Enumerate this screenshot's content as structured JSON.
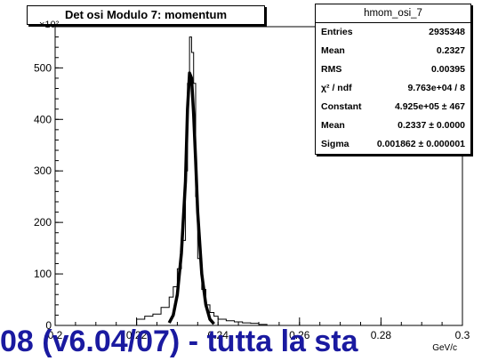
{
  "chart_data": {
    "type": "histogram",
    "title": "Det osi Modulo 7: momentum",
    "xlabel": "GeV/c",
    "ylabel": "",
    "y_exponent_label": "×10²",
    "xlim": [
      0.2,
      0.3
    ],
    "ylim": [
      0,
      580
    ],
    "grid": false,
    "x_ticks": [
      "0.2",
      "0.22",
      "0.24",
      "0.26",
      "0.28",
      "0.3"
    ],
    "y_ticks": [
      "0",
      "100",
      "200",
      "300",
      "400",
      "500"
    ],
    "series": [
      {
        "x": [
          0.22,
          0.222,
          0.224,
          0.226,
          0.228,
          0.229,
          0.23,
          0.231,
          0.232,
          0.2325,
          0.233,
          0.2335,
          0.234,
          0.2345,
          0.235,
          0.236,
          0.237,
          0.238,
          0.239,
          0.24,
          0.242,
          0.244,
          0.246,
          0.248,
          0.25
        ],
        "values": [
          12,
          18,
          22,
          35,
          55,
          75,
          110,
          165,
          300,
          470,
          560,
          530,
          470,
          250,
          130,
          70,
          40,
          25,
          18,
          12,
          9,
          7,
          5,
          4,
          2
        ]
      },
      {
        "x": [
          0.228,
          0.229,
          0.23,
          0.231,
          0.232,
          0.2325,
          0.233,
          0.2335,
          0.234,
          0.2345,
          0.235,
          0.236,
          0.237,
          0.238,
          0.239
        ],
        "values": [
          5,
          20,
          60,
          140,
          280,
          420,
          490,
          480,
          410,
          320,
          220,
          100,
          40,
          12,
          3
        ]
      }
    ]
  },
  "stats": {
    "title": "hmom_osi_7",
    "rows": [
      {
        "label": "Entries",
        "value": "2935348"
      },
      {
        "label": "Mean",
        "value": "0.2327"
      },
      {
        "label": "RMS",
        "value": "0.00395"
      },
      {
        "label": "χ² / ndf",
        "value": "9.763e+04 / 8"
      },
      {
        "label": "Constant",
        "value": "4.925e+05 ± 467"
      },
      {
        "label": "Mean",
        "value": "0.2337 ± 0.0000"
      },
      {
        "label": "Sigma",
        "value": "0.001862 ± 0.000001"
      }
    ]
  },
  "caption": "08 (v6.04/07) - tutta la sta"
}
